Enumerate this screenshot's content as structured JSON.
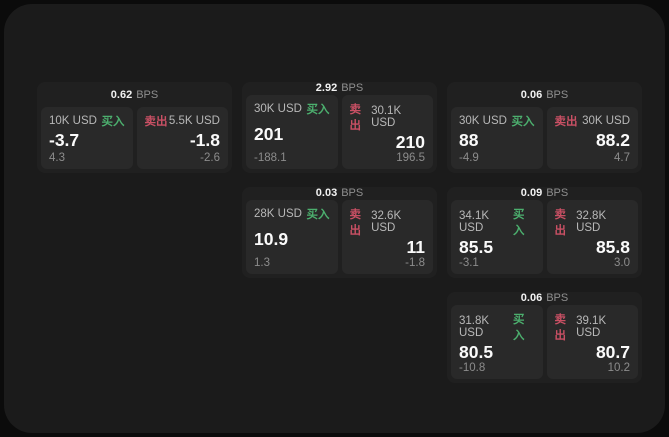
{
  "colors": {
    "outer_bg": "#0b0b0b",
    "panel_bg": "#1b1b1b",
    "card_bg": "#202020",
    "tile_bg": "#292929",
    "buy": "#4caf6e",
    "sell": "#c95064"
  },
  "labels": {
    "bps": "BPS",
    "buy": "买入",
    "sell": "卖出"
  },
  "cards": [
    {
      "row": 1,
      "col": 1,
      "bps": "0.62",
      "buy": {
        "amount": "10K USD",
        "price": "-3.7",
        "delta": "4.3"
      },
      "sell": {
        "amount": "5.5K USD",
        "price": "-1.8",
        "delta": "-2.6"
      }
    },
    {
      "row": 1,
      "col": 2,
      "bps": "2.92",
      "buy": {
        "amount": "30K USD",
        "price": "201",
        "delta": "-188.1"
      },
      "sell": {
        "amount": "30.1K USD",
        "price": "210",
        "delta": "196.5"
      }
    },
    {
      "row": 1,
      "col": 3,
      "bps": "0.06",
      "buy": {
        "amount": "30K USD",
        "price": "88",
        "delta": "-4.9"
      },
      "sell": {
        "amount": "30K USD",
        "price": "88.2",
        "delta": "4.7"
      }
    },
    {
      "row": 2,
      "col": 2,
      "bps": "0.03",
      "buy": {
        "amount": "28K USD",
        "price": "10.9",
        "delta": "1.3"
      },
      "sell": {
        "amount": "32.6K USD",
        "price": "11",
        "delta": "-1.8"
      }
    },
    {
      "row": 2,
      "col": 3,
      "bps": "0.09",
      "buy": {
        "amount": "34.1K USD",
        "price": "85.5",
        "delta": "-3.1"
      },
      "sell": {
        "amount": "32.8K USD",
        "price": "85.8",
        "delta": "3.0"
      }
    },
    {
      "row": 3,
      "col": 3,
      "bps": "0.06",
      "buy": {
        "amount": "31.8K USD",
        "price": "80.5",
        "delta": "-10.8"
      },
      "sell": {
        "amount": "39.1K USD",
        "price": "80.7",
        "delta": "10.2"
      }
    }
  ]
}
